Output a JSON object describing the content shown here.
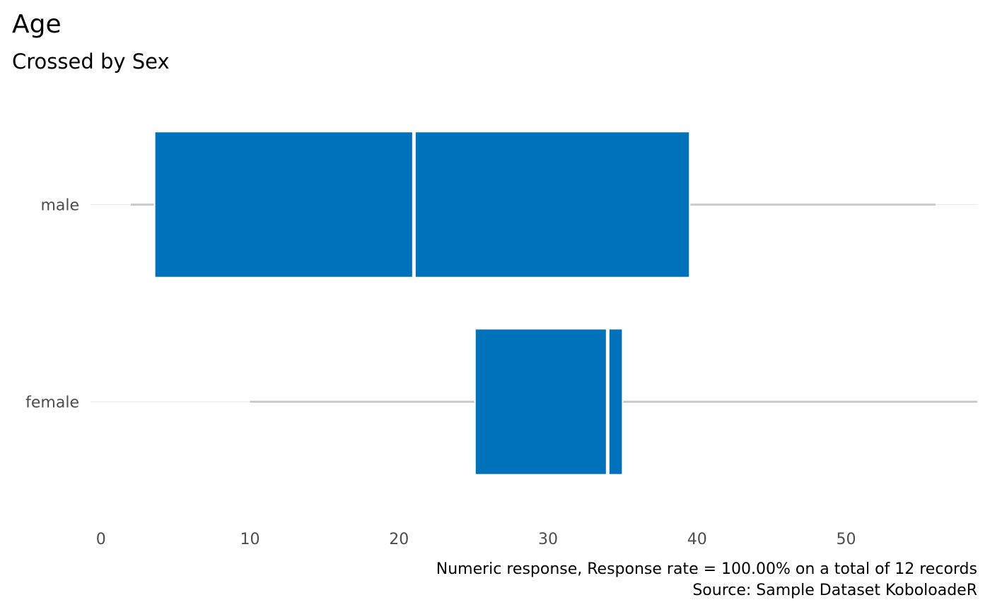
{
  "chart_data": {
    "type": "boxplot",
    "orientation": "horizontal",
    "title": "Age",
    "subtitle": "Crossed by Sex",
    "xlabel": "",
    "ylabel": "",
    "xlim": [
      -0.7,
      58.8
    ],
    "x_ticks": [
      "0",
      "10",
      "20",
      "30",
      "40",
      "50"
    ],
    "x_tick_values": [
      0,
      10,
      20,
      30,
      40,
      50
    ],
    "categories": [
      "male",
      "female"
    ],
    "boxes": [
      {
        "category": "male",
        "min": 2,
        "q1": 3.6,
        "median": 21,
        "q3": 39.5,
        "max": 56
      },
      {
        "category": "female",
        "min": 10,
        "q1": 25.1,
        "median": 34,
        "q3": 35,
        "max": 58.8
      }
    ],
    "grid": true,
    "legend": "none",
    "caption_lines": [
      "Numeric response, Response rate = 100.00% on a total of 12 records",
      "Source: Sample Dataset KoboloadeR"
    ],
    "colors": {
      "box": "#0072BC",
      "whisker": "#cccccc",
      "grid": "#ebebeb"
    }
  }
}
